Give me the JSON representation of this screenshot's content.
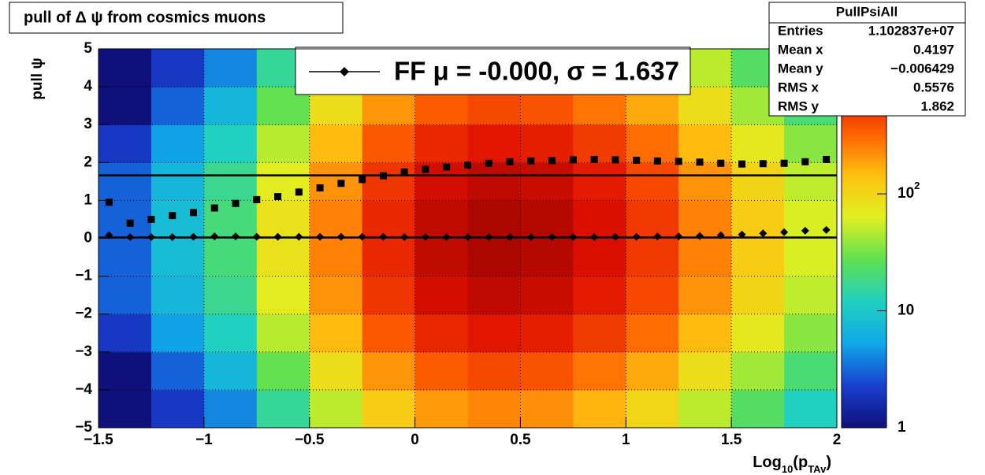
{
  "chart_data": {
    "type": "heatmap",
    "title": "pull of Δ ψ from cosmics muons",
    "x_label": {
      "main": "Log",
      "sub1": "10",
      "mid": "(p",
      "sub2": "TAv",
      "end": ")"
    },
    "y_label": "pull ψ",
    "xlim": [
      -1.5,
      2
    ],
    "ylim": [
      -5,
      5
    ],
    "xticks": [
      {
        "value": -1.5,
        "label": "−1.5"
      },
      {
        "value": -1,
        "label": "−1"
      },
      {
        "value": -0.5,
        "label": "−0.5"
      },
      0,
      0.5,
      1,
      1.5,
      2
    ],
    "yticks": [
      {
        "value": -5,
        "label": "−5"
      },
      {
        "value": -4,
        "label": "−4"
      },
      {
        "value": -3,
        "label": "−3"
      },
      {
        "value": -2,
        "label": "−2"
      },
      {
        "value": -1,
        "label": "−1"
      },
      0,
      1,
      2,
      3,
      4,
      5
    ],
    "grid": true,
    "zlim": [
      1,
      1740
    ],
    "zlog": true,
    "zticks": [
      1,
      10,
      {
        "value": 100,
        "label": "10",
        "sup": "2"
      }
    ],
    "colorscale": [
      "#10107a",
      "#1840d0",
      "#10a8e8",
      "#20d0c0",
      "#60e050",
      "#e0f020",
      "#ffc010",
      "#ff6000",
      "#e01000",
      "#800000"
    ],
    "xbins": [
      -1.5,
      -1.25,
      -1,
      -0.75,
      -0.5,
      -0.25,
      0,
      0.25,
      0.5,
      0.75,
      1,
      1.25,
      1.5,
      1.75,
      2
    ],
    "ybins": [
      -5,
      -4,
      -3,
      -2,
      -1,
      0,
      1,
      2,
      3,
      4,
      5
    ],
    "z": [
      [
        1,
        2,
        4,
        16,
        50,
        120,
        200,
        240,
        220,
        160,
        100,
        50,
        24,
        12
      ],
      [
        1,
        3,
        7,
        28,
        88,
        210,
        350,
        420,
        385,
        280,
        175,
        88,
        42,
        21
      ],
      [
        2,
        5,
        12,
        48,
        150,
        360,
        600,
        720,
        660,
        480,
        300,
        150,
        72,
        36
      ],
      [
        3,
        7,
        17,
        68,
        213,
        510,
        850,
        1020,
        935,
        680,
        425,
        213,
        102,
        51
      ],
      [
        3,
        8,
        20,
        80,
        250,
        600,
        1000,
        1200,
        1100,
        800,
        500,
        250,
        120,
        60
      ],
      [
        3,
        8,
        20,
        80,
        250,
        600,
        1000,
        1200,
        1100,
        800,
        500,
        250,
        120,
        60
      ],
      [
        3,
        7,
        17,
        68,
        213,
        510,
        850,
        1020,
        935,
        680,
        425,
        213,
        102,
        51
      ],
      [
        2,
        5,
        12,
        48,
        150,
        360,
        600,
        720,
        660,
        480,
        300,
        150,
        72,
        36
      ],
      [
        1,
        3,
        7,
        28,
        88,
        210,
        350,
        420,
        385,
        280,
        175,
        88,
        42,
        21
      ],
      [
        1,
        2,
        4,
        16,
        50,
        120,
        200,
        240,
        220,
        160,
        100,
        50,
        24,
        12
      ]
    ],
    "x": [
      -1.45,
      -1.35,
      -1.25,
      -1.15,
      -1.05,
      -0.95,
      -0.85,
      -0.75,
      -0.65,
      -0.55,
      -0.45,
      -0.35,
      -0.25,
      -0.15,
      -0.05,
      0.05,
      0.15,
      0.25,
      0.35,
      0.45,
      0.55,
      0.65,
      0.75,
      0.85,
      0.95,
      1.05,
      1.15,
      1.25,
      1.35,
      1.45,
      1.55,
      1.65,
      1.75,
      1.85,
      1.95
    ],
    "series": [
      {
        "marker": "square",
        "color": "#000000",
        "values": [
          0.95,
          0.4,
          0.5,
          0.6,
          0.68,
          0.8,
          0.92,
          1.02,
          1.1,
          1.22,
          1.33,
          1.45,
          1.55,
          1.65,
          1.75,
          1.82,
          1.88,
          1.93,
          1.98,
          2.02,
          2.04,
          2.05,
          2.07,
          2.08,
          2.07,
          2.06,
          2.04,
          2.03,
          2.01,
          1.98,
          1.96,
          1.97,
          1.98,
          2.02,
          2.08
        ]
      },
      {
        "marker": "diamond",
        "color": "#000000",
        "values": [
          0.08,
          0.03,
          0.03,
          0.03,
          0.04,
          0.05,
          0.05,
          0.04,
          0.04,
          0.04,
          0.04,
          0.04,
          0.04,
          0.04,
          0.03,
          0.03,
          0.03,
          0.03,
          0.03,
          0.03,
          0.03,
          0.03,
          0.03,
          0.03,
          0.04,
          0.04,
          0.05,
          0.05,
          0.06,
          0.08,
          0.1,
          0.13,
          0.16,
          0.2,
          0.22
        ]
      }
    ],
    "fit_lines": [
      1.66,
      0.02
    ],
    "legend": {
      "label": "FF μ = -0.000, σ =   1.637"
    },
    "stats": {
      "title": "PullPsiAll",
      "rows": [
        [
          "Entries",
          "1.102837e+07"
        ],
        [
          "Mean x",
          "0.4197"
        ],
        [
          "Mean y",
          "−0.006429"
        ],
        [
          "RMS x",
          "0.5576"
        ],
        [
          "RMS y",
          "1.862"
        ]
      ]
    }
  }
}
